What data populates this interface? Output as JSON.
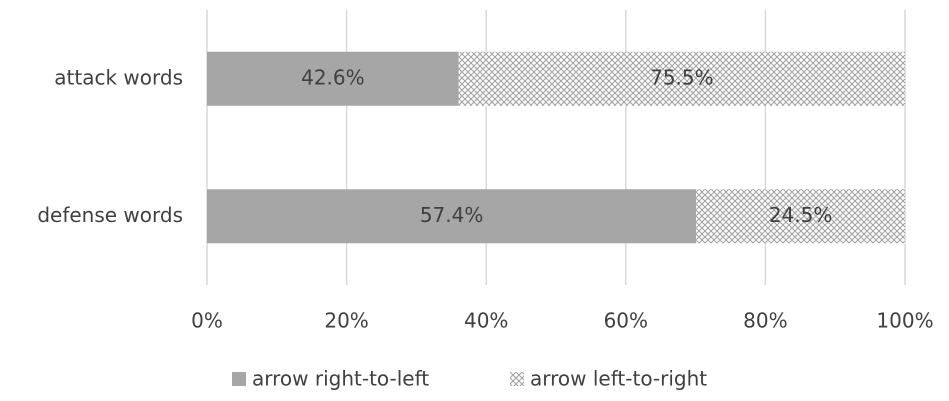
{
  "chart_data": {
    "type": "bar",
    "orientation": "horizontal",
    "stacking": "percent",
    "categories": [
      "attack words",
      "defense words"
    ],
    "series": [
      {
        "name": "arrow right-to-left",
        "color": "#a6a6a6",
        "pattern": "solid",
        "values": [
          42.6,
          57.4
        ],
        "value_labels": [
          "42.6%",
          "57.4%"
        ]
      },
      {
        "name": "arrow left-to-right",
        "color": "#bfbfbf",
        "pattern": "crosshatch",
        "values": [
          75.5,
          24.5
        ],
        "value_labels": [
          "75.5%",
          "24.5%"
        ]
      }
    ],
    "xlim": [
      0,
      100
    ],
    "xticks": [
      {
        "value": 0,
        "label": "0%"
      },
      {
        "value": 20,
        "label": "20%"
      },
      {
        "value": 40,
        "label": "40%"
      },
      {
        "value": 60,
        "label": "60%"
      },
      {
        "value": 80,
        "label": "80%"
      },
      {
        "value": 100,
        "label": "100%"
      }
    ],
    "grid": true,
    "legend": "bottom"
  }
}
